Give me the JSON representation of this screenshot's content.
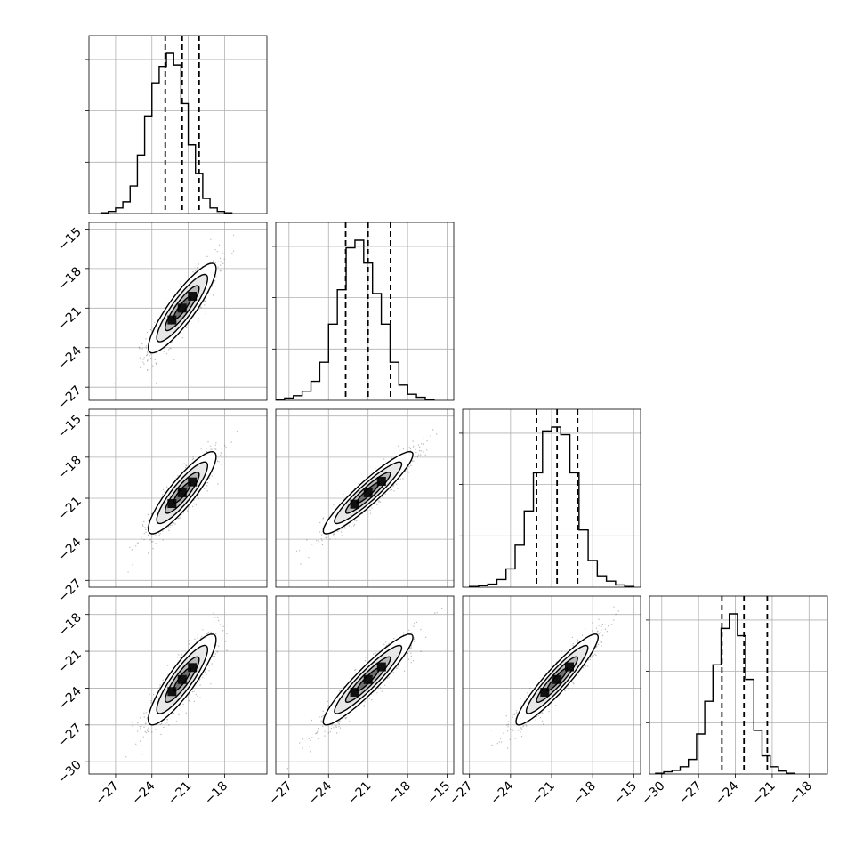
{
  "chart_data": {
    "type": "corner",
    "title": "",
    "grid": true,
    "n_params": 4,
    "ranges": [
      [
        -29.2,
        -14.5
      ],
      [
        -28.0,
        -14.5
      ],
      [
        -27.5,
        -14.5
      ],
      [
        -31.0,
        -16.5
      ]
    ],
    "tick_values": [
      [
        -27,
        -24,
        -21,
        -18
      ],
      [
        -27,
        -24,
        -21,
        -18,
        -15
      ],
      [
        -27,
        -24,
        -21,
        -18,
        -15
      ],
      [
        -30,
        -27,
        -24,
        -21,
        -18
      ]
    ],
    "y_tick_values": [
      [],
      [
        -15,
        -18,
        -21,
        -24,
        -27
      ],
      [
        -15,
        -18,
        -21,
        -24,
        -27
      ],
      [
        -18,
        -21,
        -24,
        -27,
        -30
      ]
    ],
    "tick_labels": [
      [
        "−27",
        "−24",
        "−21",
        "−18"
      ],
      [
        "−27",
        "−24",
        "−21",
        "−18",
        "−15"
      ],
      [
        "−27",
        "−24",
        "−21",
        "−18",
        "−15"
      ],
      [
        "−30",
        "−27",
        "−24",
        "−21",
        "−18"
      ]
    ],
    "y_tick_labels": [
      [],
      [
        "−15",
        "−18",
        "−21",
        "−24",
        "−27"
      ],
      [
        "−15",
        "−18",
        "−21",
        "−24",
        "−27"
      ],
      [
        "−18",
        "−21",
        "−24",
        "−27",
        "−30"
      ]
    ],
    "quantiles": [
      [
        -22.9,
        -21.5,
        -20.1
      ],
      [
        -22.7,
        -21.0,
        -19.3
      ],
      [
        -22.1,
        -20.6,
        -19.1
      ],
      [
        -25.1,
        -23.3,
        -21.4
      ]
    ],
    "histograms": [
      {
        "edges_start": -28.2,
        "bin_width": 0.6,
        "counts": [
          1,
          3,
          8,
          17,
          40,
          85,
          142,
          190,
          214,
          233,
          216,
          160,
          100,
          58,
          22,
          8,
          3,
          1
        ]
      },
      {
        "edges_start": -28.0,
        "bin_width": 0.667,
        "counts": [
          1,
          3,
          6,
          12,
          25,
          50,
          100,
          145,
          200,
          210,
          180,
          140,
          100,
          50,
          20,
          8,
          4,
          1
        ]
      },
      {
        "edges_start": -27.0,
        "bin_width": 0.667,
        "counts": [
          1,
          2,
          4,
          10,
          24,
          55,
          100,
          150,
          205,
          210,
          200,
          150,
          75,
          35,
          15,
          8,
          3,
          1
        ]
      },
      {
        "edges_start": -30.5,
        "bin_width": 0.667,
        "counts": [
          1,
          3,
          5,
          10,
          20,
          55,
          100,
          150,
          200,
          220,
          190,
          130,
          60,
          25,
          10,
          4,
          1
        ]
      }
    ],
    "pairs": [
      {
        "x": 0,
        "y": 1,
        "correlation": 0.88
      },
      {
        "x": 0,
        "y": 2,
        "correlation": 0.88
      },
      {
        "x": 1,
        "y": 2,
        "correlation": 0.93
      },
      {
        "x": 0,
        "y": 3,
        "correlation": 0.88
      },
      {
        "x": 1,
        "y": 3,
        "correlation": 0.93
      },
      {
        "x": 2,
        "y": 3,
        "correlation": 0.93
      }
    ],
    "contour_levels_sigma": [
      0.5,
      1.0,
      1.5,
      2.0
    ],
    "scatter_color": "#000000",
    "contour_color": "#000000"
  }
}
